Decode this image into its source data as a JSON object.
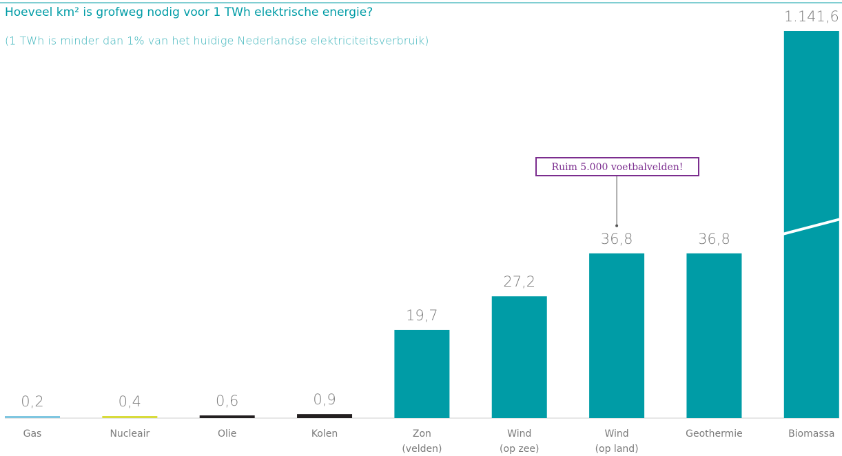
{
  "chart_data": {
    "type": "bar",
    "title": "Hoeveel km² is grofweg nodig voor 1 TWh elektrische energie?",
    "subtitle": "(1 TWh is minder dan 1% van het huidige Nederlandse elektriciteitsverbruik)",
    "categories": [
      [
        "Gas"
      ],
      [
        "Nucleair"
      ],
      [
        "Olie"
      ],
      [
        "Kolen"
      ],
      [
        "Zon",
        "(velden)"
      ],
      [
        "Wind",
        "(op zee)"
      ],
      [
        "Wind",
        "(op land)"
      ],
      [
        "Geothermie"
      ],
      [
        "Biomassa"
      ]
    ],
    "values": [
      0.2,
      0.4,
      0.6,
      0.9,
      19.7,
      27.2,
      36.8,
      36.8,
      1141.6
    ],
    "value_labels": [
      "0,2",
      "0,4",
      "0,6",
      "0,9",
      "19,7",
      "27,2",
      "36,8",
      "36,8",
      "1.141,6"
    ],
    "colors": [
      "#7fc6e0",
      "#d8db3c",
      "#231f20",
      "#231f20",
      "#009ca6",
      "#009ca6",
      "#009ca6",
      "#009ca6",
      "#009ca6"
    ],
    "ylim": [
      0,
      40
    ],
    "axis_break": true,
    "annotations": [
      {
        "text": "Ruim 5.000 voetbalvelden!",
        "target": 6
      }
    ]
  }
}
